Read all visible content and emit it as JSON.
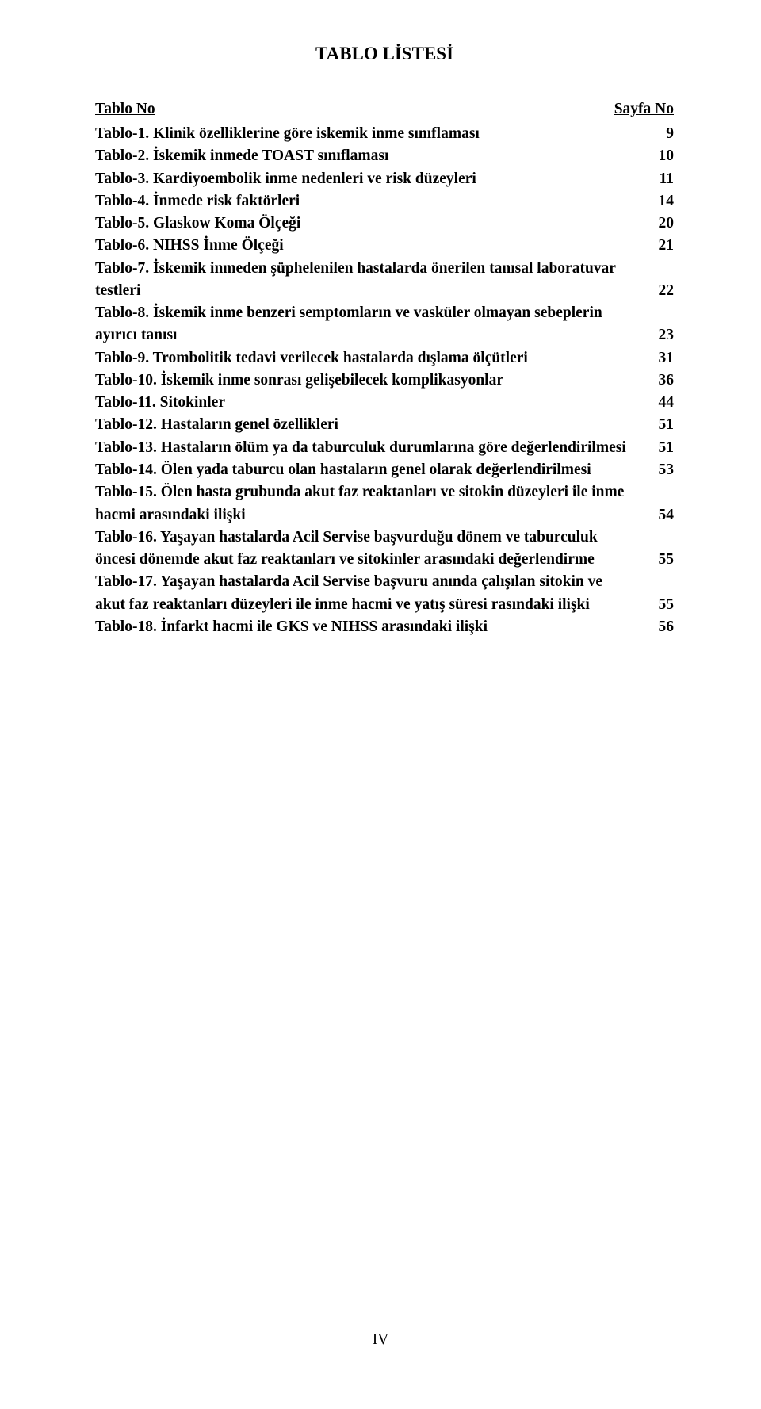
{
  "title": "TABLO LİSTESİ",
  "columns": {
    "left": "Tablo No",
    "right": "Sayfa No"
  },
  "entries": [
    {
      "label": "Tablo-1. Klinik özelliklerine göre iskemik inme sınıflaması",
      "page": "9"
    },
    {
      "label": "Tablo-2. İskemik inmede TOAST sınıflaması",
      "page": "10"
    },
    {
      "label": "Tablo-3. Kardiyoembolik inme nedenleri ve risk düzeyleri",
      "page": "11"
    },
    {
      "label": "Tablo-4. İnmede risk faktörleri",
      "page": "14"
    },
    {
      "label": "Tablo-5. Glaskow Koma Ölçeği",
      "page": "20"
    },
    {
      "label": "Tablo-6. NIHSS İnme Ölçeği",
      "page": "21"
    },
    {
      "label": "Tablo-7. İskemik inmeden şüphelenilen hastalarda önerilen tanısal laboratuvar testleri",
      "page": "22"
    },
    {
      "label": "Tablo-8. İskemik inme benzeri semptomların ve vasküler olmayan sebeplerin ayırıcı tanısı",
      "page": "23"
    },
    {
      "label": "Tablo-9. Trombolitik tedavi verilecek hastalarda dışlama ölçütleri",
      "page": "31"
    },
    {
      "label": "Tablo-10. İskemik inme sonrası gelişebilecek komplikasyonlar",
      "page": "36"
    },
    {
      "label": "Tablo-11. Sitokinler",
      "page": "44"
    },
    {
      "label": "Tablo-12. Hastaların genel özellikleri",
      "page": "51"
    },
    {
      "label": "Tablo-13. Hastaların ölüm ya da taburculuk durumlarına göre değerlendirilmesi",
      "page": "51"
    },
    {
      "label": "Tablo-14. Ölen yada taburcu olan hastaların genel olarak değerlendirilmesi",
      "page": "53"
    },
    {
      "label": "Tablo-15. Ölen hasta grubunda akut faz reaktanları ve sitokin düzeyleri ile inme hacmi arasındaki ilişki",
      "page": "54"
    },
    {
      "label": "Tablo-16. Yaşayan hastalarda Acil Servise başvurduğu dönem ve taburculuk öncesi dönemde akut faz reaktanları ve sitokinler arasındaki değerlendirme",
      "page": "55"
    },
    {
      "label": "Tablo-17. Yaşayan hastalarda Acil Servise başvuru anında çalışılan sitokin ve akut faz reaktanları düzeyleri ile inme hacmi ve yatış süresi rasındaki ilişki",
      "page": "55"
    },
    {
      "label": "Tablo-18. İnfarkt hacmi ile GKS ve NIHSS arasındaki ilişki",
      "page": "56"
    }
  ],
  "pageFooter": "IV",
  "style": {
    "background_color": "#ffffff",
    "text_color": "#000000",
    "font_family": "Times New Roman",
    "title_fontsize": 23,
    "body_fontsize": 19.5,
    "font_weight": "bold",
    "line_height": 1.45
  }
}
